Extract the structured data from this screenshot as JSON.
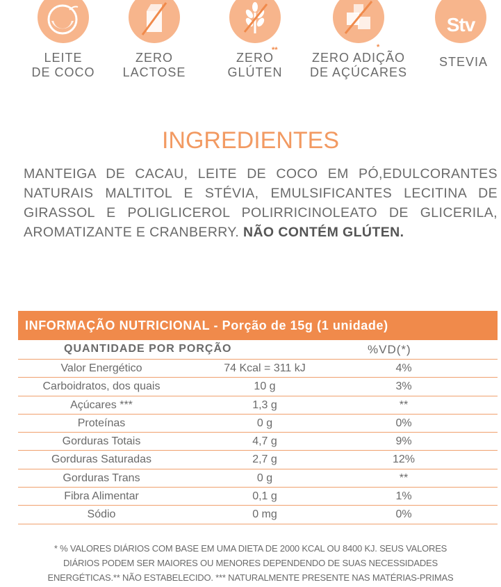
{
  "badges": [
    {
      "label_line1": "LEITE",
      "label_line2": "DE COCO",
      "icon": "coconut-icon",
      "mark": ""
    },
    {
      "label_line1": "ZERO",
      "label_line2": "LACTOSE",
      "icon": "milk-carton-crossed-icon",
      "mark": ""
    },
    {
      "label_line1": "ZERO",
      "label_line2": "GLÚTEN",
      "icon": "wheat-crossed-icon",
      "mark": "**"
    },
    {
      "label_line1": "ZERO ADIÇÃO",
      "label_line2": "DE AÇÚCARES",
      "icon": "sugar-cubes-crossed-icon",
      "mark": "*"
    },
    {
      "label_line1": "STEVIA",
      "label_line2": "",
      "icon": "stevia-icon",
      "icon_text": "Stv",
      "mark": ""
    }
  ],
  "ingredients": {
    "title": "INGREDIENTES",
    "text": "MANTEIGA DE CACAU, LEITE DE COCO EM PÓ,EDULCORANTES NATURAIS MALTITOL E STÉVIA, EMULSIFICANTES LECITINA DE GIRASSOL E POLIGLICEROL POLIRRICINOLEATO DE GLICERILA, AROMATIZANTE E CRANBERRY.",
    "highlight": "NÃO CONTÉM GLÚTEN."
  },
  "nutrition": {
    "header": "INFORMAÇÃO NUTRICIONAL - Porção de 15g (1 unidade)",
    "col_quantity": "QUANTIDADE POR PORÇÃO",
    "col_vd": "%VD(*)",
    "rows": [
      {
        "name": "Valor Energético",
        "qty": "74 Kcal = 311 kJ",
        "vd": "4%"
      },
      {
        "name": "Carboidratos, dos quais",
        "qty": "10 g",
        "vd": "3%"
      },
      {
        "name": "Açúcares ***",
        "qty": "1,3 g",
        "vd": "**"
      },
      {
        "name": "Proteínas",
        "qty": "0 g",
        "vd": "0%"
      },
      {
        "name": "Gorduras Totais",
        "qty": "4,7 g",
        "vd": "9%"
      },
      {
        "name": "Gorduras Saturadas",
        "qty": "2,7 g",
        "vd": "12%"
      },
      {
        "name": "Gorduras Trans",
        "qty": "0 g",
        "vd": "**"
      },
      {
        "name": "Fibra Alimentar",
        "qty": "0,1 g",
        "vd": "1%"
      },
      {
        "name": "Sódio",
        "qty": "0 mg",
        "vd": "0%"
      }
    ]
  },
  "footnote": {
    "line1": "* % VALORES DIÁRIOS COM BASE EM UMA DIETA DE 2000 KCAL OU  8400 KJ. SEUS VALORES",
    "line2": "DIÁRIOS PODEM SER MAIORES OU MENORES  DEPENDENDO DE SUAS NECESSIDADES",
    "line3": "ENERGÉTICAS.**  NÃO ESTABELECIDO. *** NATURALMENTE PRESENTE NAS  MATÉRIAS-PRIMAS"
  },
  "colors": {
    "accent": "#f08a4b",
    "badge_bg": "#f7b58c",
    "title": "#f29a62",
    "text": "#6a6a6a"
  }
}
